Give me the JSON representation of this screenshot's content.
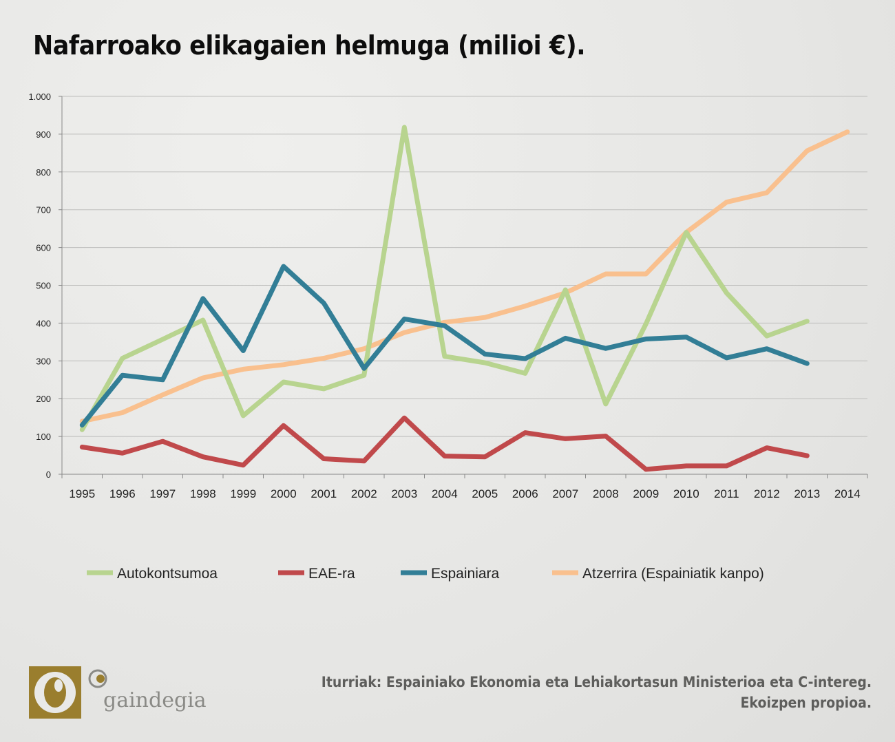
{
  "title": "Nafarroako elikagaien helmuga (milioi €).",
  "source": {
    "line1": "Iturriak: Espainiako Ekonomia eta Lehiakortasun Ministerioa eta C-intereg.",
    "line2": "Ekoizpen propioa."
  },
  "logo": {
    "text": "gaindegia",
    "icon": "gaindegia-logo-icon"
  },
  "colors": {
    "Autokontsumoa": "#b8d48f",
    "EAE-ra": "#c0494b",
    "Espainiara": "#327e96",
    "Atzerrira": "#f9c08e",
    "grid": "#bdbdbb"
  },
  "chart_data": {
    "type": "line",
    "title": "Nafarroako elikagaien helmuga (milioi €).",
    "xlabel": "",
    "ylabel": "",
    "ylim": [
      0,
      1000
    ],
    "yticks": [
      0,
      100,
      200,
      300,
      400,
      500,
      600,
      700,
      800,
      900,
      1000
    ],
    "ytick_labels": [
      "0",
      "100",
      "200",
      "300",
      "400",
      "500",
      "600",
      "700",
      "800",
      "900",
      "1.000"
    ],
    "categories": [
      "1995",
      "1996",
      "1997",
      "1998",
      "1999",
      "2000",
      "2001",
      "2002",
      "2003",
      "2004",
      "2005",
      "2006",
      "2007",
      "2008",
      "2009",
      "2010",
      "2011",
      "2012",
      "2013",
      "2014"
    ],
    "grid": true,
    "legend_position": "bottom",
    "series": [
      {
        "name": "Autokontsumoa",
        "color": "#b8d48f",
        "values": [
          118,
          307,
          357,
          408,
          155,
          244,
          226,
          262,
          918,
          312,
          295,
          267,
          488,
          186,
          398,
          640,
          480,
          366,
          405,
          null
        ]
      },
      {
        "name": "EAE-ra",
        "color": "#c0494b",
        "values": [
          72,
          56,
          87,
          46,
          24,
          129,
          41,
          35,
          149,
          48,
          46,
          110,
          94,
          101,
          13,
          22,
          22,
          70,
          49,
          null
        ]
      },
      {
        "name": "Espainiara",
        "color": "#327e96",
        "values": [
          130,
          262,
          250,
          465,
          327,
          550,
          453,
          280,
          411,
          393,
          318,
          306,
          360,
          333,
          358,
          363,
          308,
          332,
          293,
          null
        ]
      },
      {
        "name": "Atzerrira  (Espainiatik kanpo)",
        "color": "#f9c08e",
        "values": [
          140,
          163,
          210,
          255,
          278,
          290,
          307,
          332,
          375,
          402,
          415,
          445,
          480,
          530,
          530,
          640,
          720,
          745,
          856,
          906
        ]
      }
    ]
  }
}
